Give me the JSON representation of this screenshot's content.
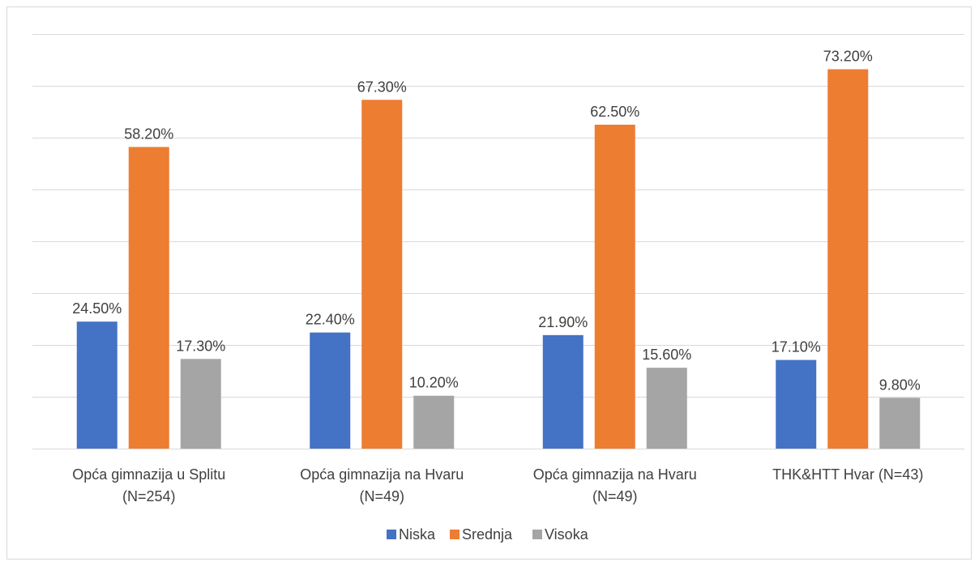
{
  "chart_data": {
    "type": "bar",
    "categories": [
      [
        "Opća gimnazija u Splitu",
        "(N=254)"
      ],
      [
        "Opća gimnazija na Hvaru",
        "(N=49)"
      ],
      [
        "Opća gimnazija na Hvaru",
        "(N=49)"
      ],
      [
        "THK&HTT Hvar (N=43)"
      ]
    ],
    "series": [
      {
        "name": "Niska",
        "color": "#4472c4",
        "values": [
          24.5,
          22.4,
          21.9,
          17.1
        ],
        "labels": [
          "24.50%",
          "22.40%",
          "21.90%",
          "17.10%"
        ]
      },
      {
        "name": "Srednja",
        "color": "#ed7d31",
        "values": [
          58.2,
          67.3,
          62.5,
          73.2
        ],
        "labels": [
          "58.20%",
          "67.30%",
          "62.50%",
          "73.20%"
        ]
      },
      {
        "name": "Visoka",
        "color": "#a5a5a5",
        "values": [
          17.3,
          10.2,
          15.6,
          9.8
        ],
        "labels": [
          "17.30%",
          "10.20%",
          "15.60%",
          "9.80%"
        ]
      }
    ],
    "ylim": [
      0,
      80
    ],
    "grid": true,
    "legend": "bottom",
    "title": "",
    "xlabel": "",
    "ylabel": ""
  }
}
